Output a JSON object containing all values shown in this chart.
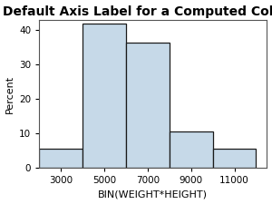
{
  "title": "Default Axis Label for a Computed Column",
  "xlabel": "BIN(WEIGHT*HEIGHT)",
  "ylabel": "Percent",
  "bar_edges": [
    2000,
    4000,
    6000,
    8000,
    10000,
    12000
  ],
  "bar_heights": [
    5.5,
    42.0,
    36.5,
    10.5,
    5.5
  ],
  "bar_color": "#c6d9e8",
  "bar_edgecolor": "#1a1a1a",
  "xlim": [
    2000,
    12500
  ],
  "ylim": [
    0,
    43
  ],
  "xticks": [
    3000,
    5000,
    7000,
    9000,
    11000
  ],
  "yticks": [
    0,
    10,
    20,
    30,
    40
  ],
  "title_fontsize": 10,
  "label_fontsize": 8,
  "tick_fontsize": 7.5,
  "background_color": "#ffffff",
  "plot_bg_color": "#ffffff"
}
